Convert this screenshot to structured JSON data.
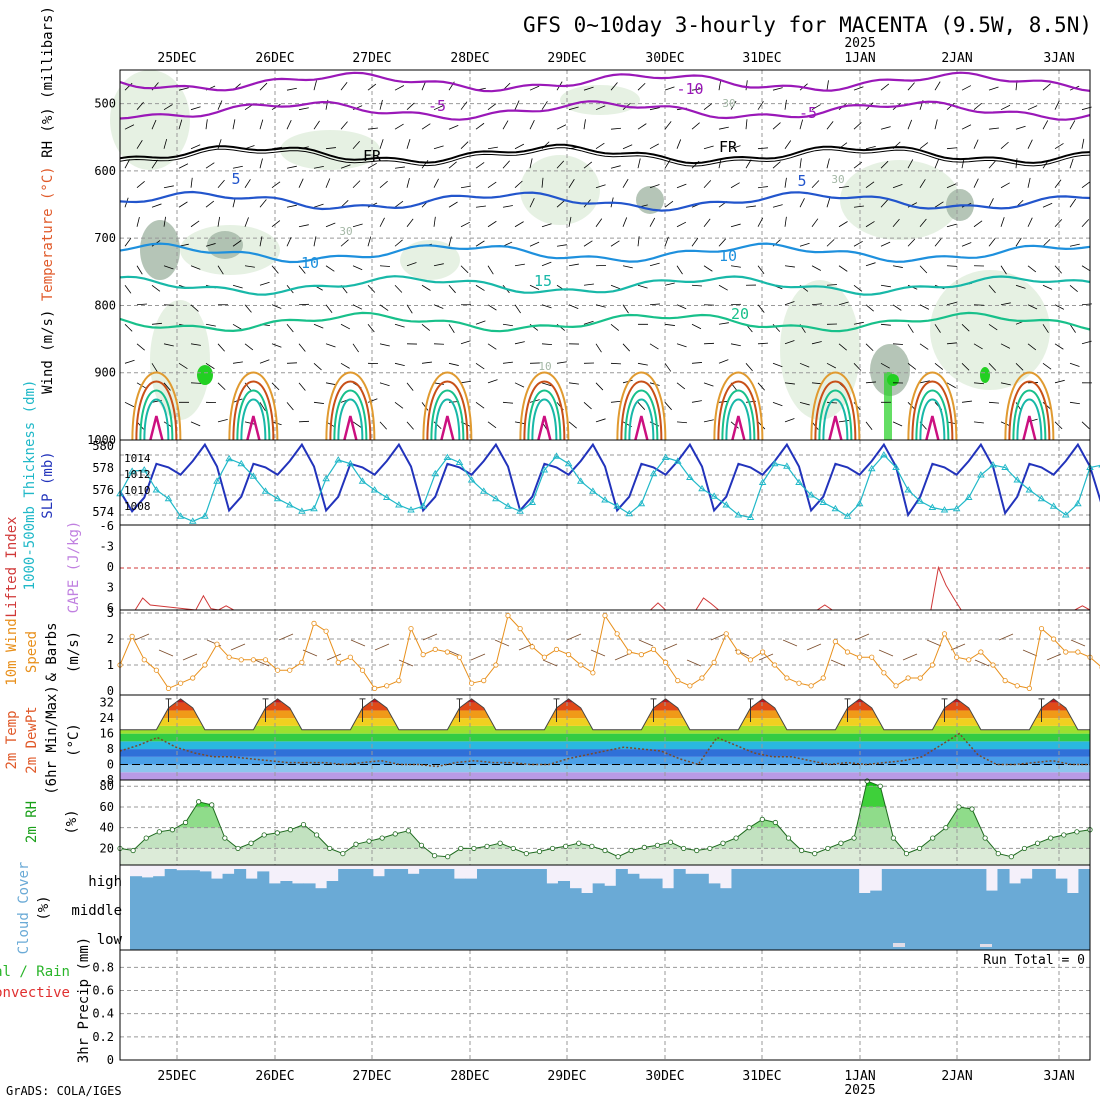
{
  "title": "GFS 0~10day 3-hourly for MACENTA (9.5W, 8.5N)",
  "credit": "GrADS: COLA/IGES",
  "colors": {
    "rh_light": "#e3f0e0",
    "rh_mid": "#c6dcc4",
    "rh_dark": "#a3b7a5",
    "rh_green": "#22d022",
    "contour_cold": "#9a18b8",
    "contour_freeze": "#000000",
    "contour_blue": "#2255cc",
    "contour_lightblue": "#1e90dd",
    "contour_teal": "#18b8a8",
    "contour_green": "#18c08a",
    "contour_orange": "#e09a30",
    "contour_darkorange": "#c85018",
    "contour_magenta": "#cc1080",
    "slp": "#2233bb",
    "thickness": "#20b8c8",
    "lifted_index": "#d03838",
    "cape": "#c080e0",
    "wind10m": "#e8901c",
    "dewpoint": "#7a4a28",
    "rh2m": "#1aa01a",
    "cloud": "#6aaad6",
    "cloud_background": "#f4f0fa",
    "grid": "#999999"
  },
  "chart_data": [
    {
      "panel": "upper-air",
      "type": "heatmap",
      "ylabel_parts": [
        "Wind",
        "(m/s)",
        "Temperature",
        "(°C)",
        "RH (%)",
        "(millibars)"
      ],
      "yticks": [
        "500",
        "600",
        "700",
        "800",
        "900",
        "1000"
      ],
      "ylim": [
        450,
        1000
      ],
      "x_top_labels": [
        "25DEC",
        "26DEC",
        "27DEC",
        "28DEC",
        "29DEC",
        "30DEC",
        "31DEC",
        "1JAN",
        "2JAN",
        "3JAN"
      ],
      "year_label": "2025",
      "contour_labels": [
        "-10",
        "-5",
        "-5",
        "FR",
        "FR",
        "5",
        "5",
        "10",
        "10",
        "15",
        "20",
        "30",
        "30",
        "30",
        "10"
      ],
      "isotherms": [
        {
          "label": "-10",
          "colorKey": "contour_cold",
          "level": 468
        },
        {
          "label": "-5",
          "colorKey": "contour_cold",
          "level": 510
        },
        {
          "label": "FR",
          "colorKey": "contour_freeze",
          "level": 575
        },
        {
          "label": "5",
          "colorKey": "contour_blue",
          "level": 645
        },
        {
          "label": "10",
          "colorKey": "contour_lightblue",
          "level": 722
        },
        {
          "label": "15",
          "colorKey": "contour_teal",
          "level": 770
        },
        {
          "label": "20",
          "colorKey": "contour_green",
          "level": 825
        }
      ]
    },
    {
      "panel": "thickness-slp",
      "type": "line",
      "ylabel_parts": [
        "1000-500mb",
        "Thickness (dm)",
        "SLP (mb)"
      ],
      "left_ticks": [
        "580",
        "578",
        "576",
        "574"
      ],
      "right_ticks": [
        "1014",
        "1012",
        "1010",
        "1008"
      ],
      "x": [
        0,
        3,
        6,
        9,
        12,
        15,
        18,
        21,
        24,
        27,
        30,
        33,
        36,
        39,
        42,
        45,
        48,
        51,
        54,
        57,
        60,
        63,
        66,
        69,
        72,
        75,
        78,
        81,
        84,
        87,
        90,
        93,
        96,
        99,
        102,
        105,
        108,
        111,
        114,
        117,
        120,
        123,
        126,
        129,
        132,
        135,
        138,
        141,
        144,
        147,
        150,
        153,
        156,
        159,
        162,
        165,
        168,
        171,
        174,
        177,
        180,
        183,
        186,
        189,
        192,
        195,
        198,
        201,
        204,
        207,
        210,
        213,
        216,
        219,
        222,
        225,
        228,
        231,
        234,
        237,
        240,
        243
      ],
      "series": [
        {
          "name": "SLP (mb)",
          "colorKey": "slp",
          "ylim": [
            1006.5,
            1015.8
          ],
          "values": [
            1010.2,
            1008.0,
            1009.5,
            1013.2,
            1012.8,
            1012.0,
            1013.5,
            1015.3,
            1012.9,
            1008.1,
            1009.6,
            1013.2,
            1012.8,
            1012.0,
            1013.5,
            1015.3,
            1012.9,
            1008.1,
            1009.6,
            1013.2,
            1012.8,
            1012.0,
            1013.5,
            1015.3,
            1012.9,
            1008.1,
            1009.6,
            1013.2,
            1012.8,
            1012.0,
            1013.5,
            1015.3,
            1012.9,
            1008.1,
            1009.6,
            1013.2,
            1012.8,
            1012.0,
            1013.5,
            1015.3,
            1012.9,
            1008.1,
            1009.6,
            1013.2,
            1012.8,
            1012.0,
            1013.5,
            1015.3,
            1012.9,
            1008.1,
            1009.6,
            1013.2,
            1012.8,
            1012.0,
            1013.5,
            1015.3,
            1012.9,
            1008.1,
            1009.6,
            1013.2,
            1012.8,
            1012.0,
            1013.5,
            1015.3,
            1012.9,
            1007.6,
            1009.6,
            1013.2,
            1012.8,
            1012.0,
            1013.5,
            1015.3,
            1012.9,
            1007.8,
            1009.6,
            1013.2,
            1012.8,
            1012.0,
            1013.5,
            1015.3,
            1012.9,
            1008.6
          ]
        },
        {
          "name": "Thickness (dm)",
          "colorKey": "thickness",
          "ylim": [
            573.5,
            580.3
          ],
          "marker": "triangle",
          "values": [
            576.0,
            577.8,
            577.9,
            576.3,
            575.6,
            574.2,
            573.8,
            574.2,
            577.0,
            578.8,
            578.4,
            577.4,
            576.2,
            575.6,
            575.1,
            574.6,
            574.8,
            577.2,
            578.7,
            578.4,
            577.0,
            576.3,
            575.7,
            575.1,
            574.7,
            575.0,
            577.6,
            578.9,
            578.5,
            577.1,
            576.2,
            575.6,
            575.0,
            574.6,
            575.3,
            577.9,
            579.0,
            578.4,
            577.0,
            576.2,
            575.5,
            575.0,
            574.4,
            575.2,
            577.6,
            578.9,
            578.6,
            577.3,
            576.4,
            575.8,
            575.1,
            574.3,
            574.1,
            576.9,
            578.4,
            578.2,
            576.9,
            575.9,
            575.3,
            574.8,
            574.2,
            575.2,
            578.0,
            579.1,
            578.1,
            576.3,
            575.4,
            574.9,
            574.7,
            574.8,
            575.7,
            577.5,
            578.3,
            578.1,
            577.1,
            576.3,
            575.6,
            575.0,
            574.3,
            575.2,
            578.1,
            578.3
          ]
        }
      ]
    },
    {
      "panel": "lifted-index-cape",
      "type": "line",
      "ylabel_parts": [
        "Lifted Index",
        "CAPE (J/kg)"
      ],
      "left_ticks": [
        "-6",
        "-3",
        "0",
        "3",
        "6"
      ],
      "ylim": [
        6,
        -6
      ],
      "series": [
        {
          "name": "Lifted Index",
          "colorKey": "lifted_index",
          "points": [
            [
              6,
              6
            ],
            [
              9,
              4.3
            ],
            [
              12,
              5.3
            ],
            [
              30,
              6
            ],
            [
              33,
              4.0
            ],
            [
              36,
              5.8
            ],
            [
              39,
              6
            ],
            [
              42,
              5.4
            ],
            [
              45,
              6
            ],
            [
              210,
              6
            ],
            [
              213,
              5.0
            ],
            [
              216,
              6
            ],
            [
              228,
              6
            ],
            [
              231,
              4.3
            ],
            [
              234,
              5.1
            ],
            [
              237,
              6
            ],
            [
              276,
              6
            ],
            [
              279,
              5.3
            ],
            [
              282,
              6
            ],
            [
              321,
              6
            ],
            [
              324,
              0.0
            ],
            [
              327,
              2.5
            ],
            [
              330,
              4.3
            ],
            [
              333,
              6
            ],
            [
              378,
              6
            ],
            [
              381,
              5.4
            ],
            [
              384,
              6
            ]
          ],
          "xscale": "pixel-free"
        }
      ]
    },
    {
      "panel": "wind10m",
      "type": "line",
      "ylabel_parts": [
        "10m Wind",
        "Speed",
        "& Barbs",
        "(m/s)"
      ],
      "left_ticks": [
        "0",
        "1",
        "2",
        "3"
      ],
      "ylim": [
        0,
        3
      ],
      "series": [
        {
          "name": "10m Wind Speed",
          "colorKey": "wind10m",
          "marker": "circle",
          "values": [
            1.0,
            2.1,
            1.2,
            0.8,
            0.1,
            0.3,
            0.5,
            1.0,
            1.8,
            1.3,
            1.2,
            1.2,
            1.2,
            0.8,
            0.8,
            1.1,
            2.6,
            2.3,
            1.1,
            1.3,
            0.8,
            0.1,
            0.2,
            0.4,
            2.4,
            1.4,
            1.6,
            1.5,
            1.3,
            0.3,
            0.4,
            1.0,
            2.9,
            2.4,
            1.7,
            1.3,
            1.6,
            1.4,
            1.0,
            0.7,
            2.9,
            2.2,
            1.5,
            1.4,
            1.6,
            1.1,
            0.4,
            0.2,
            0.5,
            1.1,
            2.2,
            1.5,
            1.2,
            1.5,
            1.0,
            0.5,
            0.3,
            0.2,
            0.5,
            1.9,
            1.5,
            1.3,
            1.3,
            0.7,
            0.2,
            0.5,
            0.5,
            1.0,
            2.2,
            1.3,
            1.2,
            1.5,
            1.0,
            0.4,
            0.2,
            0.1,
            2.4,
            2.0,
            1.5,
            1.5,
            1.3,
            0.9,
            1.2
          ]
        }
      ]
    },
    {
      "panel": "temp2m",
      "type": "area",
      "ylabel_parts": [
        "2m Temp",
        "2m DewPt",
        "(6hr Min/Max)",
        "(°C)"
      ],
      "left_ticks": [
        "-8",
        "0",
        "8",
        "16",
        "24",
        "32"
      ],
      "ylim": [
        -8,
        36
      ],
      "peaks": [
        34,
        34,
        34,
        34,
        34,
        34,
        34,
        34,
        34,
        34
      ],
      "trough_value": 18,
      "dewpoint_values": [
        7,
        10,
        14,
        9,
        6,
        4,
        4,
        3,
        2,
        1,
        1,
        1,
        0,
        1,
        2,
        0,
        0,
        -1,
        1,
        2,
        1,
        1,
        0,
        0,
        3,
        5,
        7,
        9,
        8,
        7,
        3,
        0,
        14,
        10,
        6,
        4,
        4,
        2,
        0,
        1,
        0,
        1,
        2,
        4,
        10,
        16,
        5,
        0,
        0,
        1,
        2,
        0,
        0
      ]
    },
    {
      "panel": "rh2m",
      "type": "area",
      "ylabel_parts": [
        "2m RH",
        "(%)"
      ],
      "left_ticks": [
        "20",
        "40",
        "60",
        "80"
      ],
      "ylim": [
        4,
        86
      ],
      "series": [
        {
          "name": "2m RH",
          "colorKey": "rh2m",
          "marker": "circle",
          "values": [
            20,
            18,
            30,
            36,
            38,
            45,
            65,
            62,
            30,
            20,
            25,
            33,
            35,
            38,
            43,
            33,
            20,
            15,
            24,
            27,
            30,
            34,
            37,
            23,
            13,
            12,
            20,
            20,
            22,
            25,
            20,
            15,
            17,
            20,
            22,
            25,
            22,
            18,
            12,
            18,
            21,
            23,
            26,
            20,
            18,
            20,
            25,
            30,
            40,
            48,
            45,
            30,
            18,
            15,
            20,
            25,
            30,
            85,
            80,
            30,
            15,
            20,
            30,
            40,
            60,
            58,
            30,
            15,
            12,
            20,
            25,
            30,
            33,
            36,
            38
          ]
        }
      ]
    },
    {
      "panel": "cloud-cover",
      "type": "area",
      "ylabel_parts": [
        "Cloud Cover",
        "(%)"
      ],
      "level_labels": [
        "high",
        "middle",
        "low"
      ],
      "high_values": [
        70,
        65,
        70,
        100,
        95,
        95,
        90,
        60,
        80,
        100,
        60,
        90,
        40,
        50,
        40,
        40,
        20,
        50,
        100,
        100,
        100,
        70,
        100,
        100,
        80,
        100,
        100,
        100,
        60,
        60,
        100,
        100,
        100,
        100,
        100,
        100,
        40,
        50,
        20,
        0,
        40,
        30,
        100,
        80,
        60,
        60,
        20,
        100,
        80,
        80,
        40,
        20,
        100,
        100,
        100,
        100,
        100,
        100,
        100,
        100,
        100,
        100,
        100,
        0,
        10,
        100,
        100,
        100,
        100,
        100,
        100,
        100,
        100,
        100,
        10,
        100,
        40,
        60,
        100,
        100,
        60,
        0,
        100
      ]
    },
    {
      "panel": "precip",
      "type": "bar",
      "ylabel_parts": [
        "Total / Rain",
        "Convective",
        "3hr Precip (mm)"
      ],
      "left_ticks": [
        "0",
        "0.2",
        "0.4",
        "0.6",
        "0.8"
      ],
      "ylim": [
        0,
        0.95
      ],
      "run_total_label": "Run Total = 0",
      "values": [],
      "x_bottom_labels": [
        "25DEC",
        "26DEC",
        "27DEC",
        "28DEC",
        "29DEC",
        "30DEC",
        "31DEC",
        "1JAN",
        "2JAN",
        "3JAN"
      ],
      "year_label": "2025"
    }
  ]
}
